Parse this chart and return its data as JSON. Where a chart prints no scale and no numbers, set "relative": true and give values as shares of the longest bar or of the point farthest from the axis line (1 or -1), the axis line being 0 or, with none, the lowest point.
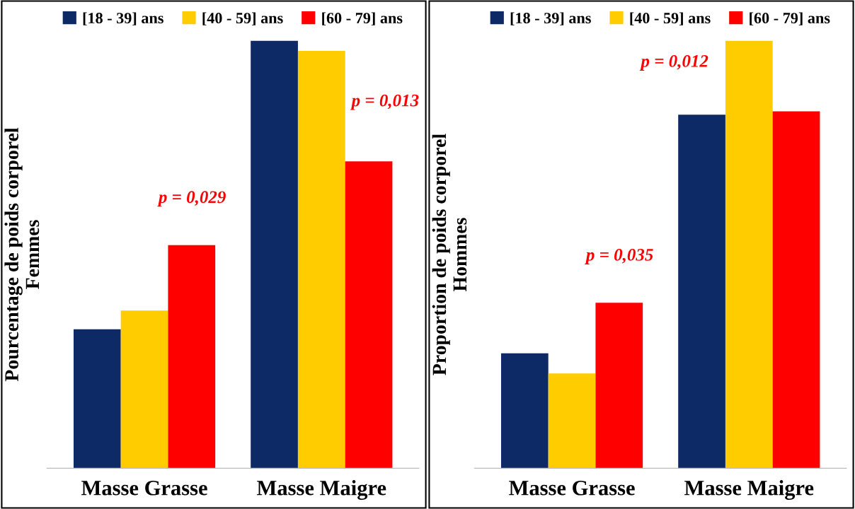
{
  "chart_data": [
    {
      "type": "bar",
      "relative": true,
      "ylabel": "Pourcentage de poids corporel\nFemmes",
      "categories": [
        "Masse Grasse",
        "Masse Maigre"
      ],
      "legend": "top",
      "series": [
        {
          "name": "[18 - 39] ans",
          "color": "#0d2a66",
          "values": [
            0.325,
            1
          ]
        },
        {
          "name": "[40 - 59] ans",
          "color": "#ffcc00",
          "values": [
            0.369,
            0.976
          ]
        },
        {
          "name": "[60 - 79] ans",
          "color": "#ff0000",
          "values": [
            0.522,
            0.718
          ]
        }
      ],
      "annotations": [
        "p = 0,029",
        "p = 0,013"
      ]
    },
    {
      "type": "bar",
      "relative": true,
      "ylabel": "Proportion de poids corporel\nHommes",
      "categories": [
        "Masse Grasse",
        "Masse Maigre"
      ],
      "legend": "top",
      "series": [
        {
          "name": "[18 - 39] ans",
          "color": "#0d2a66",
          "values": [
            0.269,
            0.827
          ]
        },
        {
          "name": "[40 - 59] ans",
          "color": "#ffcc00",
          "values": [
            0.222,
            1
          ]
        },
        {
          "name": "[60 - 79] ans",
          "color": "#ff0000",
          "values": [
            0.387,
            0.835
          ]
        }
      ],
      "annotations": [
        "p = 0,035",
        "p = 0,012"
      ]
    }
  ]
}
